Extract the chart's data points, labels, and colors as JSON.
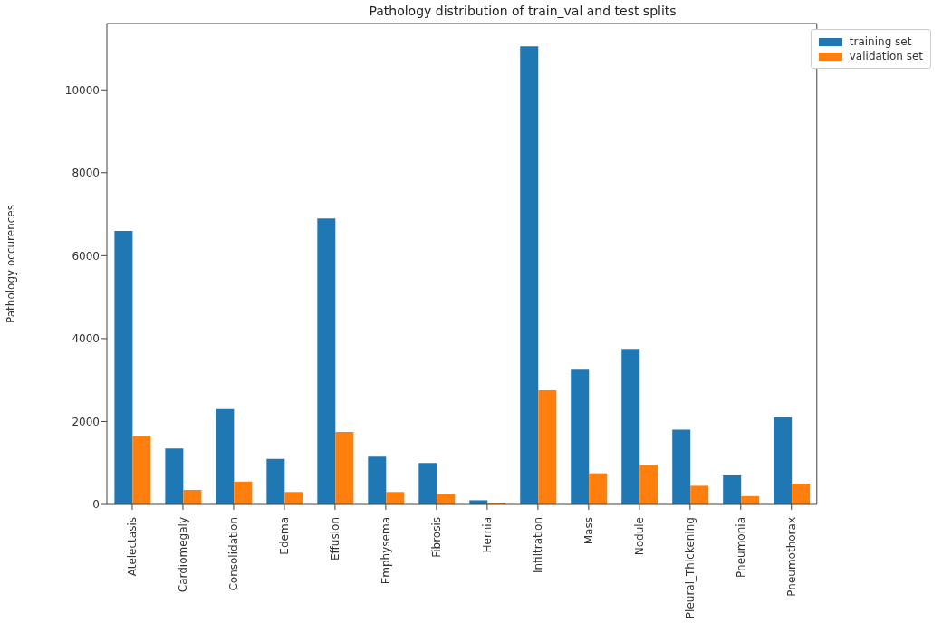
{
  "chart_data": {
    "type": "bar",
    "title": "Pathology distribution of train_val and test splits",
    "ylabel": "Pathology occurences",
    "categories": [
      "Atelectasis",
      "Cardiomegaly",
      "Consolidation",
      "Edema",
      "Effusion",
      "Emphysema",
      "Fibrosis",
      "Hernia",
      "Infiltration",
      "Mass",
      "Nodule",
      "Pleural_Thickening",
      "Pneumonia",
      "Pneumothorax"
    ],
    "series": [
      {
        "name": "training set",
        "color": "#1f77b4",
        "values": [
          6600,
          1350,
          2300,
          1100,
          6900,
          1150,
          1000,
          100,
          11050,
          3250,
          3750,
          1800,
          700,
          2100
        ]
      },
      {
        "name": "validation set",
        "color": "#ff7f0e",
        "values": [
          1650,
          350,
          550,
          300,
          1750,
          300,
          250,
          40,
          2750,
          750,
          950,
          450,
          200,
          500
        ]
      }
    ],
    "ylim": [
      0,
      11600
    ],
    "yticks": [
      0,
      2000,
      4000,
      6000,
      8000,
      10000
    ],
    "legend": "top right"
  }
}
